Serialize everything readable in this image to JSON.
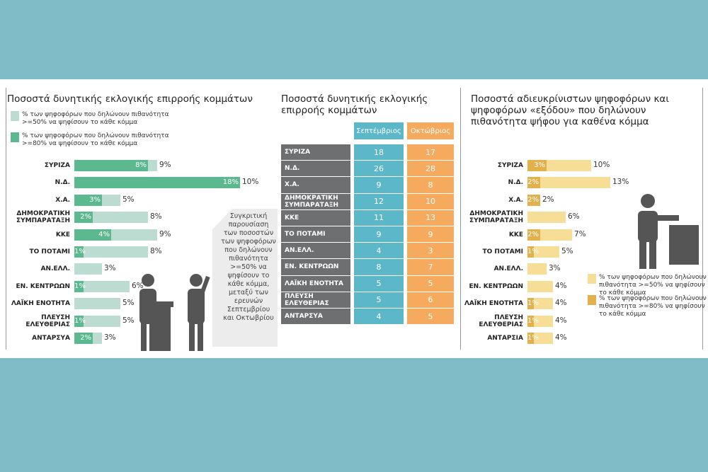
{
  "chart_data": [
    {
      "type": "bar",
      "title": "Ποσοστά δυνητικής εκλογικής επιρροής κομμάτων",
      "categories": [
        "ΣΥΡΙΖΑ",
        "Ν.Δ.",
        "Χ.Α.",
        "ΔΗΜΟΚΡΑΤΙΚΗ\nΣΥΜΠΑΡΑΤΑΞΗ",
        "ΚΚΕ",
        "ΤΟ ΠΟΤΑΜΙ",
        "ΑΝ.ΕΛΛ.",
        "ΕΝ. ΚΕΝΤΡΩΩΝ",
        "ΛΑΪΚΗ ΕΝΟΤΗΤΑ",
        "ΠΛΕΥΣΗ\nΕΛΕΥΘΕΡΙΑΣ",
        "ΑΝΤΑΡΣΥΑ"
      ],
      "series": [
        {
          "name": "% των ψηφοφόρων που δηλώνουν πιθανότητα >=50% να ψηφίσουν το κάθε κόμμα",
          "color": "#bcdcd1",
          "values": [
            9,
            10,
            5,
            8,
            9,
            8,
            3,
            6,
            5,
            5,
            3
          ],
          "value_labels": [
            "9%",
            "10%",
            "5%",
            "8%",
            "9%",
            "8%",
            "3%",
            "6%",
            "5%",
            "5%",
            "3%"
          ]
        },
        {
          "name": "% των ψηφοφόρων που δηλώνουν πιθανότητα >=80% να ψηφίσουν το κάθε κόμμα",
          "color": "#5cb88f",
          "values": [
            8,
            18,
            3,
            2,
            4,
            1,
            null,
            1,
            null,
            1,
            2
          ],
          "value_labels": [
            "8%",
            "18%",
            "3%",
            "2%",
            "4%",
            "1%",
            null,
            "1%",
            null,
            "1%",
            "2%"
          ]
        }
      ],
      "annotation": "Συγκριτική παρουσίαση των ποσοστών των ψηφοφόρων που δηλώνουν πιθανότητα >=50% να ψηφίσουν το κάθε κόμμα, μεταξύ των ερευνών Σεπτεμβρίου και Οκτωβρίου"
    },
    {
      "type": "bar",
      "title": "Ποσοστά αδιευκρίνιστων ψηφοφόρων και ψηφοφόρων «εξόδου» που δηλώνουν πιθανότητα ψήφου για καθένα κόμμα",
      "categories": [
        "ΣΥΡΙΖΑ",
        "Ν.Δ.",
        "Χ.Α.",
        "ΔΗΜΟΚΡΑΤΙΚΗ\nΣΥΜΠΑΡΑΤΑΞΗ",
        "ΚΚΕ",
        "ΤΟ ΠΟΤΑΜΙ",
        "ΑΝ.ΕΛΛ.",
        "ΕΝ. ΚΕΝΤΡΩΩΝ",
        "ΛΑΪΚΗ ΕΝΟΤΗΤΑ",
        "ΠΛΕΥΣΗ\nΕΛΕΥΘΕΡΙΑΣ",
        "ΑΝΤΑΡΣΙΑ"
      ],
      "series": [
        {
          "name": "% των ψηφοφόρων που δηλώνουν πιθανότητα >=50% να ψηφίσουν το κάθε κόμμα",
          "color": "#f6de97",
          "values": [
            10,
            13,
            2,
            6,
            7,
            5,
            3,
            4,
            4,
            4,
            4
          ],
          "value_labels": [
            "10%",
            "13%",
            "2%",
            "6%",
            "7%",
            "5%",
            "3%",
            "4%",
            "4%",
            "4%",
            "4%"
          ]
        },
        {
          "name": "% των ψηφοφόρων που δηλώνουν πιθανότητα >=80% να ψηφίσουν το κάθε κόμμα",
          "color": "#e2b14c",
          "values": [
            3,
            2,
            2,
            null,
            2,
            1,
            null,
            null,
            1,
            1,
            1
          ],
          "value_labels": [
            "3%",
            "2%",
            "2%",
            null,
            "2%",
            "1%",
            null,
            null,
            "1%",
            "1%",
            "1%"
          ]
        }
      ]
    }
  ],
  "table": {
    "title": "Ποσοστά δυνητικής εκλογικής επιρροής κομμάτων",
    "header": [
      "Σεπτέμβριος",
      "Οκτώβριος"
    ],
    "colors": [
      "#6e6f71",
      "#5cb7c9",
      "#f6aa5e"
    ],
    "rows": [
      [
        "ΣΥΡΙΖΑ",
        18,
        17
      ],
      [
        "Ν.Δ.",
        26,
        28
      ],
      [
        "Χ.Α.",
        9,
        8
      ],
      [
        "ΔΗΜΟΚΡΑΤΙΚΗ\nΣΥΜΠΑΡΑΤΑΞΗ",
        12,
        10
      ],
      [
        "ΚΚΕ",
        11,
        13
      ],
      [
        "ΤΟ ΠΟΤΑΜΙ",
        9,
        9
      ],
      [
        "ΑΝ.ΕΛΛ.",
        4,
        3
      ],
      [
        "ΕΝ. ΚΕΝΤΡΩΩΝ",
        8,
        7
      ],
      [
        "ΛΑΪΚΗ ΕΝΟΤΗΤΑ",
        5,
        5
      ],
      [
        "ΠΛΕΥΣΗ\nΕΛΕΥΘΕΡΙΑΣ",
        5,
        6
      ],
      [
        "ΑΝΤΑΡΣΥΑ",
        4,
        5
      ]
    ]
  }
}
